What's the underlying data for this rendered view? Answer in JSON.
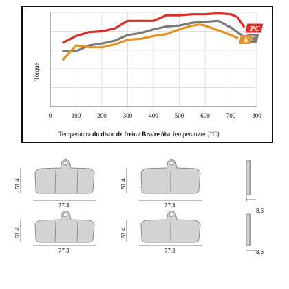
{
  "chart_data": {
    "type": "line",
    "title": "",
    "xlabel_plain": "Temperatura ",
    "xlabel_bold": "do disco de freio / Bra/re óisc",
    "xlabel_tail": " femperattzre {°C}",
    "ylabel": "Torque",
    "xlim": [
      0,
      800
    ],
    "x_ticks": [
      "0",
      "100",
      "200",
      "300",
      "400",
      "500",
      "600",
      "700",
      "800"
    ],
    "ylim": [
      0,
      100
    ],
    "grid": true,
    "legend_placement": "inline-right",
    "series": [
      {
        "name": "PC",
        "color": "#e02b27",
        "points": [
          [
            50,
            68
          ],
          [
            100,
            75
          ],
          [
            150,
            79
          ],
          [
            200,
            80
          ],
          [
            250,
            83
          ],
          [
            300,
            91
          ],
          [
            350,
            91
          ],
          [
            400,
            91
          ],
          [
            450,
            97
          ],
          [
            500,
            97
          ],
          [
            550,
            98
          ],
          [
            600,
            98
          ],
          [
            650,
            99
          ],
          [
            700,
            98
          ],
          [
            725,
            95
          ],
          [
            750,
            85
          ]
        ]
      },
      {
        "name": "C",
        "color": "#7a7a7a",
        "points": [
          [
            50,
            59
          ],
          [
            100,
            59
          ],
          [
            150,
            65
          ],
          [
            200,
            67
          ],
          [
            250,
            70
          ],
          [
            300,
            76
          ],
          [
            350,
            78
          ],
          [
            400,
            82
          ],
          [
            450,
            85
          ],
          [
            500,
            86
          ],
          [
            550,
            89
          ],
          [
            600,
            90
          ],
          [
            650,
            91
          ],
          [
            700,
            84
          ],
          [
            750,
            74
          ]
        ]
      },
      {
        "name": "K",
        "color": "#e8911e",
        "points": [
          [
            50,
            50
          ],
          [
            100,
            65
          ],
          [
            150,
            63
          ],
          [
            200,
            63
          ],
          [
            250,
            66
          ],
          [
            300,
            71
          ],
          [
            350,
            72
          ],
          [
            400,
            75
          ],
          [
            450,
            77
          ],
          [
            500,
            82
          ],
          [
            550,
            86
          ],
          [
            580,
            87
          ],
          [
            600,
            86
          ],
          [
            650,
            81
          ],
          [
            700,
            76
          ],
          [
            725,
            73
          ]
        ]
      }
    ]
  },
  "dimensions": {
    "width": "77.3",
    "height": "51.4",
    "thickness": "8.6"
  },
  "colors": {
    "pad_fill": "#d3d3d3",
    "pad_stroke": "#8a8a8a",
    "frame": "#111111"
  }
}
